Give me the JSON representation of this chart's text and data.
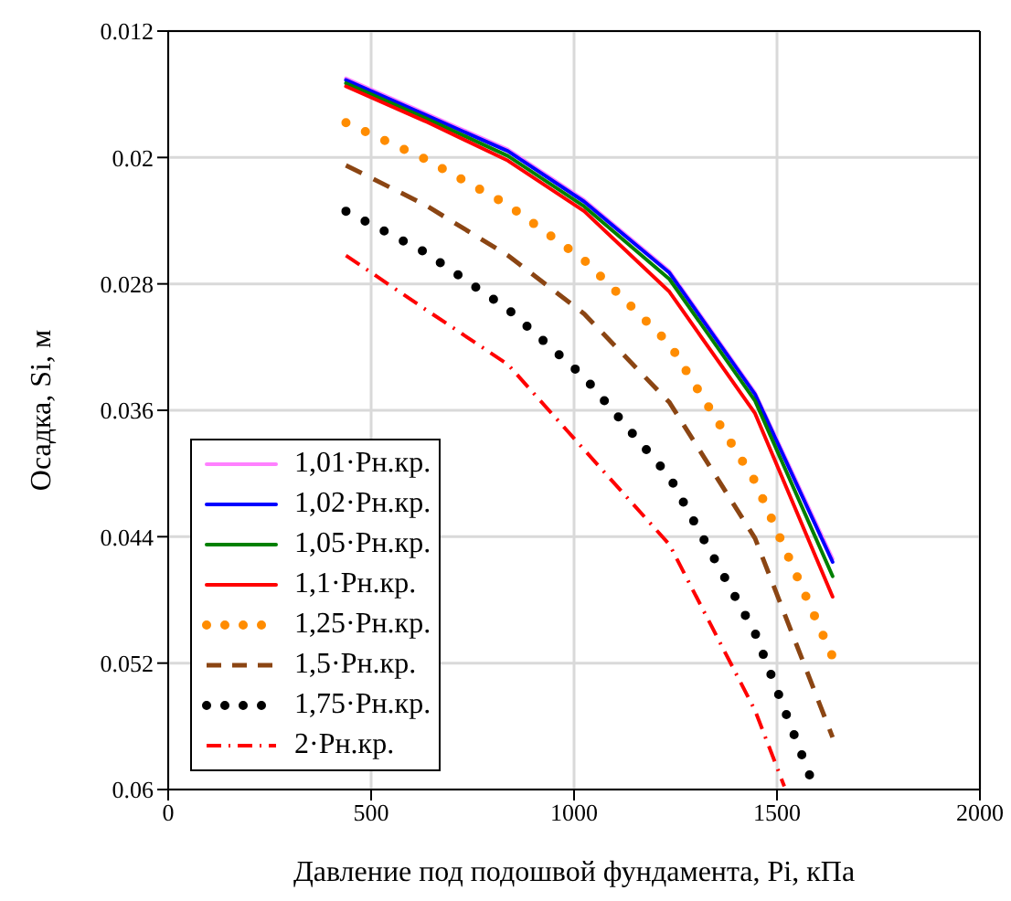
{
  "chart_data": {
    "type": "line",
    "xlabel": "Давление под подошвой фундамента, Pi, кПа",
    "ylabel": "Осадка, Si, м",
    "xlim": [
      0,
      2000
    ],
    "xticks": [
      0,
      500,
      1000,
      1500,
      2000
    ],
    "ylim": [
      0.06,
      0.012
    ],
    "yticks": [
      0.012,
      0.02,
      0.028,
      0.036,
      0.044,
      0.052,
      0.06
    ],
    "grid": true,
    "legend": "bottom left",
    "marker": "none",
    "x": [
      438,
      633,
      837,
      1025,
      1235,
      1446,
      1637
    ],
    "series": [
      {
        "name": "1,01·Рн.кр.",
        "color": "#ff80ff",
        "line_style": "solid",
        "values": [
          0.015,
          0.0172,
          0.0195,
          0.0227,
          0.0272,
          0.0349,
          0.0454
        ]
      },
      {
        "name": "1,02·Рн.кр.",
        "color": "#0000ff",
        "line_style": "solid",
        "values": [
          0.0151,
          0.0173,
          0.0196,
          0.0228,
          0.0273,
          0.035,
          0.0456
        ]
      },
      {
        "name": "1,05·Рн.кр.",
        "color": "#008000",
        "line_style": "solid",
        "values": [
          0.0153,
          0.0175,
          0.0199,
          0.0231,
          0.0277,
          0.0354,
          0.0465
        ]
      },
      {
        "name": "1,1·Рн.кр.",
        "color": "#ff0000",
        "line_style": "solid",
        "values": [
          0.0155,
          0.0177,
          0.0202,
          0.0234,
          0.0285,
          0.0362,
          0.0478
        ]
      },
      {
        "name": "1,25·Рн.кр.",
        "color": "#ff8c00",
        "line_style": "dotted",
        "values": [
          0.0178,
          0.0201,
          0.023,
          0.0265,
          0.0318,
          0.0405,
          0.0516
        ]
      },
      {
        "name": "1,5·Рн.кр.",
        "color": "#8b4513",
        "line_style": "dashed",
        "values": [
          0.0205,
          0.023,
          0.0262,
          0.0299,
          0.0355,
          0.0441,
          0.0567
        ]
      },
      {
        "name": "1,75·Рн.кр.",
        "color": "#000000",
        "line_style": "dotted",
        "x": [
          438,
          633,
          837,
          1025,
          1235,
          1446,
          1582
        ],
        "values": [
          0.0234,
          0.026,
          0.0296,
          0.0339,
          0.0402,
          0.0501,
          0.0592
        ]
      },
      {
        "name": "2·Рн.кр.",
        "color": "#ff0000",
        "line_style": "dashdot",
        "x": [
          438,
          633,
          837,
          1025,
          1235,
          1446,
          1518
        ],
        "values": [
          0.0262,
          0.0296,
          0.0331,
          0.0385,
          0.0445,
          0.055,
          0.0598
        ]
      }
    ]
  }
}
